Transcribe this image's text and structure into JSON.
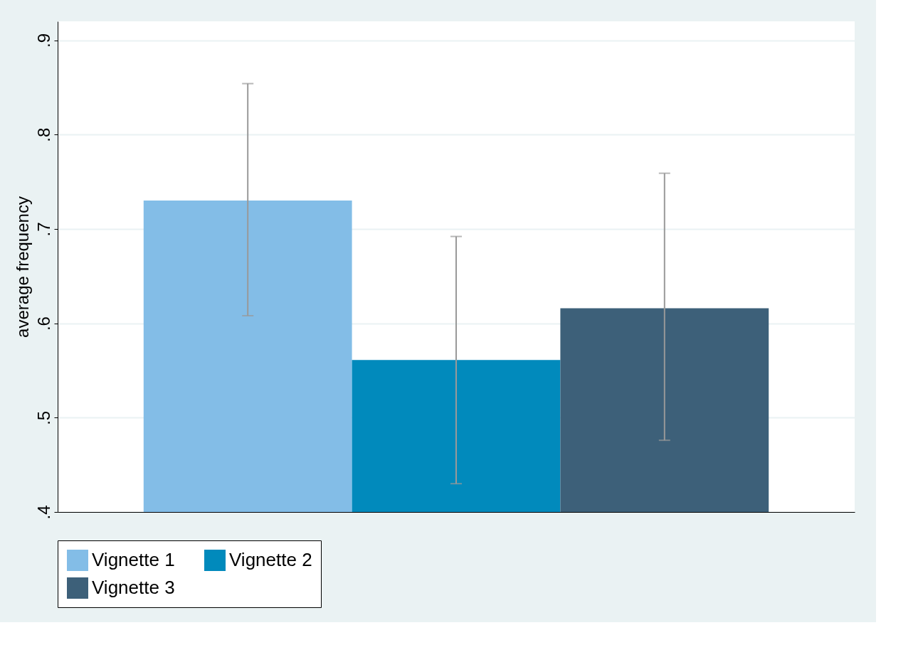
{
  "chart_data": {
    "type": "bar",
    "ylabel": "average frequency",
    "categories": [
      null
    ],
    "series": [
      {
        "name": "Vignette 1",
        "color": "#83bde7",
        "values": [
          0.73
        ],
        "errors": [
          [
            0.608,
            0.854
          ]
        ]
      },
      {
        "name": "Vignette 2",
        "color": "#018abc",
        "values": [
          0.561
        ],
        "errors": [
          [
            0.43,
            0.692
          ]
        ]
      },
      {
        "name": "Vignette 3",
        "color": "#3d6079",
        "values": [
          0.616
        ],
        "errors": [
          [
            0.476,
            0.759
          ]
        ]
      }
    ],
    "ylim": [
      0.4,
      0.92
    ],
    "yticks": [
      {
        "value": 0.4,
        "label": ".4"
      },
      {
        "value": 0.5,
        "label": ".5"
      },
      {
        "value": 0.6,
        "label": ".6"
      },
      {
        "value": 0.7,
        "label": ".7"
      },
      {
        "value": 0.8,
        "label": ".8"
      },
      {
        "value": 0.9,
        "label": ".9"
      }
    ],
    "grid": "y",
    "legend": "bottom"
  }
}
